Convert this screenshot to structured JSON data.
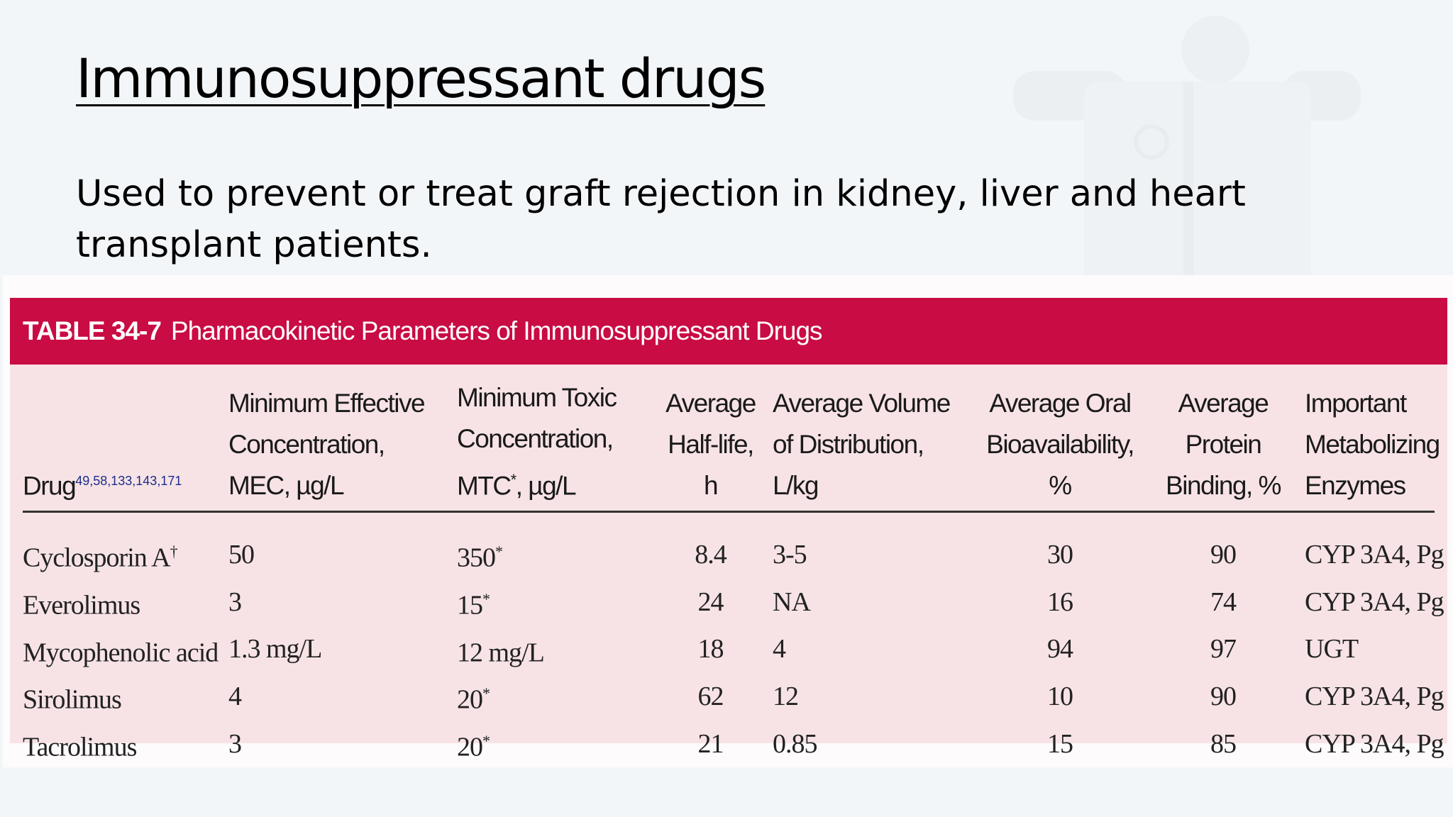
{
  "slide": {
    "title": "Immunosuppressant drugs",
    "body": "Used to prevent or treat graft rejection in kidney, liver and heart transplant patients."
  },
  "table": {
    "label": "TABLE 34-7",
    "caption": "Pharmacokinetic Parameters of Immunosuppressant Drugs",
    "headers": {
      "drug": "Drug",
      "drug_refs": "49,58,133,143,171",
      "mec": "Minimum Effective\nConcentration,\nMEC, µg/L",
      "mtc_pre": "Minimum Toxic\nConcentration,\nMTC",
      "mtc_mark": "*",
      "mtc_post": ", µg/L",
      "half_life": "Average\nHalf-life,\nh",
      "volume": "Average Volume\nof Distribution,\nL/kg",
      "bioavailability": "Average Oral\nBioavailability,\n%",
      "protein": "Average\nProtein\nBinding, %",
      "enzymes": "Important\nMetabolizing\nEnzymes"
    },
    "rows": [
      {
        "drug": "Cyclosporin A",
        "drug_mark": "†",
        "mec": "50",
        "mtc": "350",
        "mtc_mark": "*",
        "half_life": "8.4",
        "volume": "3-5",
        "bioavailability": "30",
        "protein": "90",
        "enzymes": "CYP 3A4, Pg"
      },
      {
        "drug": "Everolimus",
        "drug_mark": "",
        "mec": "3",
        "mtc": "15",
        "mtc_mark": "*",
        "half_life": "24",
        "volume": "NA",
        "bioavailability": "16",
        "protein": "74",
        "enzymes": "CYP 3A4, Pg"
      },
      {
        "drug": "Mycophenolic acid",
        "drug_mark": "",
        "mec": "1.3 mg/L",
        "mtc": "12 mg/L",
        "mtc_mark": "",
        "half_life": "18",
        "volume": "4",
        "bioavailability": "94",
        "protein": "97",
        "enzymes": "UGT"
      },
      {
        "drug": "Sirolimus",
        "drug_mark": "",
        "mec": "4",
        "mtc": "20",
        "mtc_mark": "*",
        "half_life": "62",
        "volume": "12",
        "bioavailability": "10",
        "protein": "90",
        "enzymes": "CYP 3A4, Pg"
      },
      {
        "drug": "Tacrolimus",
        "drug_mark": "",
        "mec": "3",
        "mtc": "20",
        "mtc_mark": "*",
        "half_life": "21",
        "volume": "0.85",
        "bioavailability": "15",
        "protein": "85",
        "enzymes": "CYP 3A4, Pg"
      }
    ]
  }
}
